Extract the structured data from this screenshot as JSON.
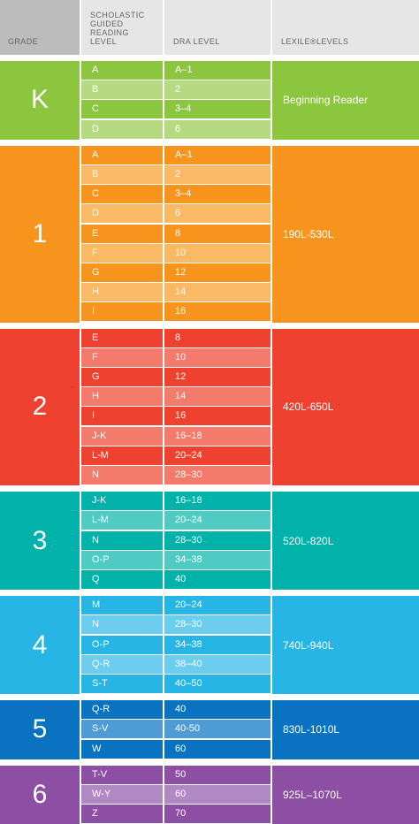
{
  "headers": {
    "grade": "GRADE",
    "guided": "SCHOLASTIC\nGUIDED\nREADING\nLEVEL",
    "dra": "DRA LEVEL",
    "lexile": "LEXILE®LEVELS"
  },
  "grades": [
    {
      "grade": "K",
      "lexile": "Beginning Reader",
      "color": "#8cc63f",
      "light": "#b5da82",
      "rows": [
        [
          "A",
          "A–1"
        ],
        [
          "B",
          "2"
        ],
        [
          "C",
          "3–4"
        ],
        [
          "D",
          "6"
        ]
      ]
    },
    {
      "grade": "1",
      "lexile": "190L-530L",
      "color": "#f7941d",
      "light": "#fab964",
      "rows": [
        [
          "A",
          "A–1"
        ],
        [
          "B",
          "2"
        ],
        [
          "C",
          "3–4"
        ],
        [
          "D",
          "6"
        ],
        [
          "E",
          "8"
        ],
        [
          "F",
          "10"
        ],
        [
          "G",
          "12"
        ],
        [
          "H",
          "14"
        ],
        [
          "I",
          "16"
        ]
      ]
    },
    {
      "grade": "2",
      "lexile": "420L-650L",
      "color": "#ef4130",
      "light": "#f47b6c",
      "rows": [
        [
          "E",
          "8"
        ],
        [
          "F",
          "10"
        ],
        [
          "G",
          "12"
        ],
        [
          "H",
          "14"
        ],
        [
          "I",
          "16"
        ],
        [
          "J-K",
          "16–18"
        ],
        [
          "L-M",
          "20–24"
        ],
        [
          "N",
          "28–30"
        ]
      ]
    },
    {
      "grade": "3",
      "lexile": "520L-820L",
      "color": "#00b2a9",
      "light": "#4fcbc4",
      "rows": [
        [
          "J-K",
          "16–18"
        ],
        [
          "L-M",
          "20–24"
        ],
        [
          "N",
          "28–30"
        ],
        [
          "O-P",
          "34–38"
        ],
        [
          "Q",
          "40"
        ]
      ]
    },
    {
      "grade": "4",
      "lexile": "740L-940L",
      "color": "#27b5e5",
      "light": "#6ccdee",
      "rows": [
        [
          "M",
          "20–24"
        ],
        [
          "N",
          "28–30"
        ],
        [
          "O-P",
          "34–38"
        ],
        [
          "Q-R",
          "38–40"
        ],
        [
          "S-T",
          "40–50"
        ]
      ]
    },
    {
      "grade": "5",
      "lexile": "830L-1010L",
      "color": "#0a73c1",
      "light": "#4e9bd5",
      "rows": [
        [
          "Q-R",
          "40"
        ],
        [
          "S-V",
          "40-50"
        ],
        [
          "W",
          "60"
        ]
      ]
    },
    {
      "grade": "6",
      "lexile": "925L–1070L",
      "color": "#8c4fa3",
      "light": "#b189c2",
      "rows": [
        [
          "T-V",
          "50"
        ],
        [
          "W-Y",
          "60"
        ],
        [
          "Z",
          "70"
        ]
      ]
    }
  ]
}
